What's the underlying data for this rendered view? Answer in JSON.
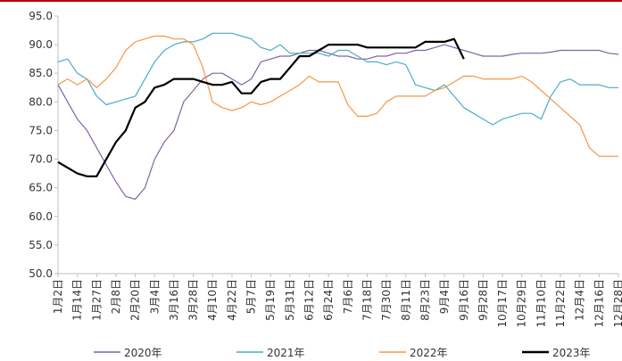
{
  "chart_data": {
    "type": "line",
    "categories": [
      "1月2日",
      null,
      "1月14日",
      null,
      "1月27日",
      null,
      "2月8日",
      null,
      "2月20日",
      null,
      "3月4日",
      null,
      "3月16日",
      null,
      "3月28日",
      null,
      "4月10日",
      null,
      "4月22日",
      null,
      "5月7日",
      null,
      "5月19日",
      null,
      "5月31日",
      null,
      "6月12日",
      null,
      "6月24日",
      null,
      "7月6日",
      null,
      "7月18日",
      null,
      "7月30日",
      null,
      "8月11日",
      null,
      "8月23日",
      null,
      "9月4日",
      null,
      "9月16日",
      null,
      "9月28日",
      null,
      "10月17日",
      null,
      "10月29日",
      null,
      "11月10日",
      null,
      "11月22日",
      null,
      "12月4日",
      null,
      "12月16日",
      null,
      "12月28日"
    ],
    "series": [
      {
        "name": "2020年",
        "color": "#8064a2",
        "values": [
          83,
          80,
          77,
          75,
          72,
          69,
          66,
          63.5,
          63,
          65,
          70,
          73,
          75,
          80,
          82,
          84,
          85,
          85,
          84,
          83,
          84,
          87,
          87.5,
          88,
          88,
          88.5,
          89,
          89,
          88.5,
          88,
          88,
          87.5,
          87.5,
          88,
          88,
          88.5,
          88.5,
          89,
          89,
          89.5,
          90,
          89.5,
          89,
          88.5,
          88,
          88,
          88,
          88.3,
          88.5,
          88.5,
          88.5,
          88.7,
          89,
          89,
          89,
          89,
          89,
          88.5,
          88.3
        ]
      },
      {
        "name": "2021年",
        "color": "#4bacc6",
        "values": [
          87,
          87.5,
          85,
          84,
          81,
          79.5,
          80,
          80.5,
          81,
          84,
          87,
          89,
          90,
          90.5,
          90.5,
          91,
          92,
          92,
          92,
          91.5,
          91,
          89.5,
          89,
          90,
          88.5,
          88.5,
          88.5,
          88.5,
          88,
          89,
          89,
          88,
          87,
          87,
          86.5,
          87,
          86.5,
          83,
          82.5,
          82,
          83,
          81,
          79,
          78,
          77,
          76,
          77,
          77.5,
          78,
          78,
          77,
          81,
          83.5,
          84,
          83,
          83,
          83,
          82.5,
          82.5
        ]
      },
      {
        "name": "2022年",
        "color": "#f79646",
        "values": [
          83,
          84,
          83,
          84,
          82.5,
          84,
          86,
          89,
          90.5,
          91,
          91.5,
          91.5,
          91,
          91,
          90,
          86,
          80,
          79,
          78.5,
          79,
          80,
          79.5,
          80,
          81,
          82,
          83,
          84.5,
          83.5,
          83.5,
          83.5,
          79.5,
          77.5,
          77.5,
          78,
          80,
          81,
          81,
          81,
          81,
          82,
          82.5,
          83.5,
          84.5,
          84.5,
          84,
          84,
          84,
          84,
          84.5,
          83.5,
          82,
          80.5,
          79,
          77.5,
          76,
          72,
          70.5,
          70.5,
          70.5
        ]
      },
      {
        "name": "2023年",
        "color": "#000000",
        "values": [
          69.5,
          68.5,
          67.5,
          67,
          67,
          70,
          73,
          75,
          79,
          80,
          82.5,
          83,
          84,
          84,
          84,
          83.5,
          83,
          83,
          83.5,
          81.5,
          81.5,
          83.5,
          84,
          84,
          86,
          88,
          88,
          89,
          90,
          90,
          90,
          90,
          89.5,
          89.5,
          89.5,
          89.5,
          89.5,
          89.5,
          90.5,
          90.5,
          90.5,
          91,
          87.5,
          null,
          null,
          null,
          null,
          null,
          null,
          null,
          null,
          null,
          null,
          null,
          null,
          null,
          null,
          null,
          null
        ]
      }
    ],
    "ylim": [
      50,
      95
    ],
    "yticks": [
      {
        "value": 50,
        "label": "50.0"
      },
      {
        "value": 55,
        "label": "55.0"
      },
      {
        "value": 60,
        "label": "60.0"
      },
      {
        "value": 65,
        "label": "65.0"
      },
      {
        "value": 70,
        "label": "70.0"
      },
      {
        "value": 75,
        "label": "75.0"
      },
      {
        "value": 80,
        "label": "80.0"
      },
      {
        "value": 85,
        "label": "85.0"
      },
      {
        "value": 90,
        "label": "90.0"
      },
      {
        "value": 95,
        "label": "95.0"
      }
    ],
    "grid": false,
    "legend": "bottom"
  }
}
